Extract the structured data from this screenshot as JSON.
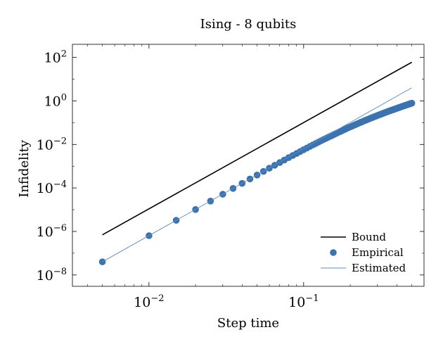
{
  "chart_data": {
    "type": "scatter",
    "title": "Ising - 8 qubits",
    "xlabel": "Step time",
    "ylabel": "Infidelity",
    "xscale": "log",
    "yscale": "log",
    "xlim": [
      0.0032,
      0.6
    ],
    "ylim": [
      3e-09,
      400
    ],
    "grid": false,
    "legend_position": "bottom-right",
    "x_ticks": [
      {
        "value": 0.01,
        "base": "10",
        "exp": "−2"
      },
      {
        "value": 0.1,
        "base": "10",
        "exp": "−1"
      }
    ],
    "y_ticks": [
      {
        "value": 1e-08,
        "base": "10",
        "exp": "−8"
      },
      {
        "value": 1e-06,
        "base": "10",
        "exp": "−6"
      },
      {
        "value": 0.0001,
        "base": "10",
        "exp": "−4"
      },
      {
        "value": 0.01,
        "base": "10",
        "exp": "−2"
      },
      {
        "value": 1,
        "base": "10",
        "exp": "0"
      },
      {
        "value": 100,
        "base": "10",
        "exp": "2"
      }
    ],
    "series": [
      {
        "name": "Bound",
        "kind": "line",
        "color": "#000000",
        "x": [
          0.005,
          0.5
        ],
        "y": [
          7e-07,
          60
        ]
      },
      {
        "name": "Empirical",
        "kind": "markers",
        "color": "#3b73b1",
        "x": [
          0.005,
          0.01,
          0.015,
          0.02,
          0.025,
          0.03,
          0.035,
          0.04,
          0.045,
          0.05,
          0.055,
          0.06,
          0.065,
          0.07,
          0.075,
          0.08,
          0.085,
          0.09,
          0.095,
          0.1,
          0.105,
          0.11,
          0.115,
          0.12,
          0.125,
          0.13,
          0.135,
          0.14,
          0.145,
          0.15,
          0.155,
          0.16,
          0.165,
          0.17,
          0.175,
          0.18,
          0.185,
          0.19,
          0.195,
          0.2,
          0.205,
          0.21,
          0.215,
          0.22,
          0.225,
          0.23,
          0.235,
          0.24,
          0.245,
          0.25,
          0.255,
          0.26,
          0.265,
          0.27,
          0.275,
          0.28,
          0.285,
          0.29,
          0.295,
          0.3,
          0.305,
          0.31,
          0.315,
          0.32,
          0.325,
          0.33,
          0.335,
          0.34,
          0.345,
          0.35,
          0.355,
          0.36,
          0.365,
          0.37,
          0.375,
          0.38,
          0.385,
          0.39,
          0.395,
          0.4,
          0.405,
          0.41,
          0.415,
          0.42,
          0.425,
          0.43,
          0.435,
          0.44,
          0.445,
          0.45,
          0.455,
          0.46,
          0.465,
          0.47,
          0.475,
          0.48,
          0.485,
          0.49,
          0.495,
          0.5
        ],
        "y": [
          4e-08,
          6.4e-07,
          3.24e-06,
          1.02e-05,
          2.49e-05,
          5.15e-05,
          9.52e-05,
          0.000162,
          0.000258,
          0.000392,
          0.000571,
          0.000806,
          0.0011,
          0.00147,
          0.00192,
          0.00246,
          0.00309,
          0.00384,
          0.00471,
          0.00571,
          0.00684,
          0.00812,
          0.00955,
          0.0111,
          0.0129,
          0.0148,
          0.017,
          0.0193,
          0.0218,
          0.0245,
          0.0274,
          0.0306,
          0.0339,
          0.0375,
          0.0413,
          0.0453,
          0.0496,
          0.0541,
          0.0588,
          0.0638,
          0.069,
          0.0745,
          0.0802,
          0.0861,
          0.0923,
          0.0987,
          0.105,
          0.112,
          0.119,
          0.127,
          0.134,
          0.142,
          0.15,
          0.158,
          0.167,
          0.176,
          0.185,
          0.194,
          0.203,
          0.213,
          0.223,
          0.233,
          0.244,
          0.254,
          0.265,
          0.276,
          0.287,
          0.299,
          0.311,
          0.323,
          0.335,
          0.347,
          0.36,
          0.373,
          0.386,
          0.399,
          0.413,
          0.427,
          0.441,
          0.455,
          0.469,
          0.484,
          0.499,
          0.514,
          0.53,
          0.545,
          0.561,
          0.577,
          0.594,
          0.61,
          0.627,
          0.644,
          0.661,
          0.678,
          0.696,
          0.714,
          0.732,
          0.75,
          0.768,
          0.787
        ]
      },
      {
        "name": "Estimated",
        "kind": "line",
        "color": "#5b8fc7",
        "x": [
          0.005,
          0.5
        ],
        "y": [
          4e-08,
          4
        ]
      }
    ]
  }
}
